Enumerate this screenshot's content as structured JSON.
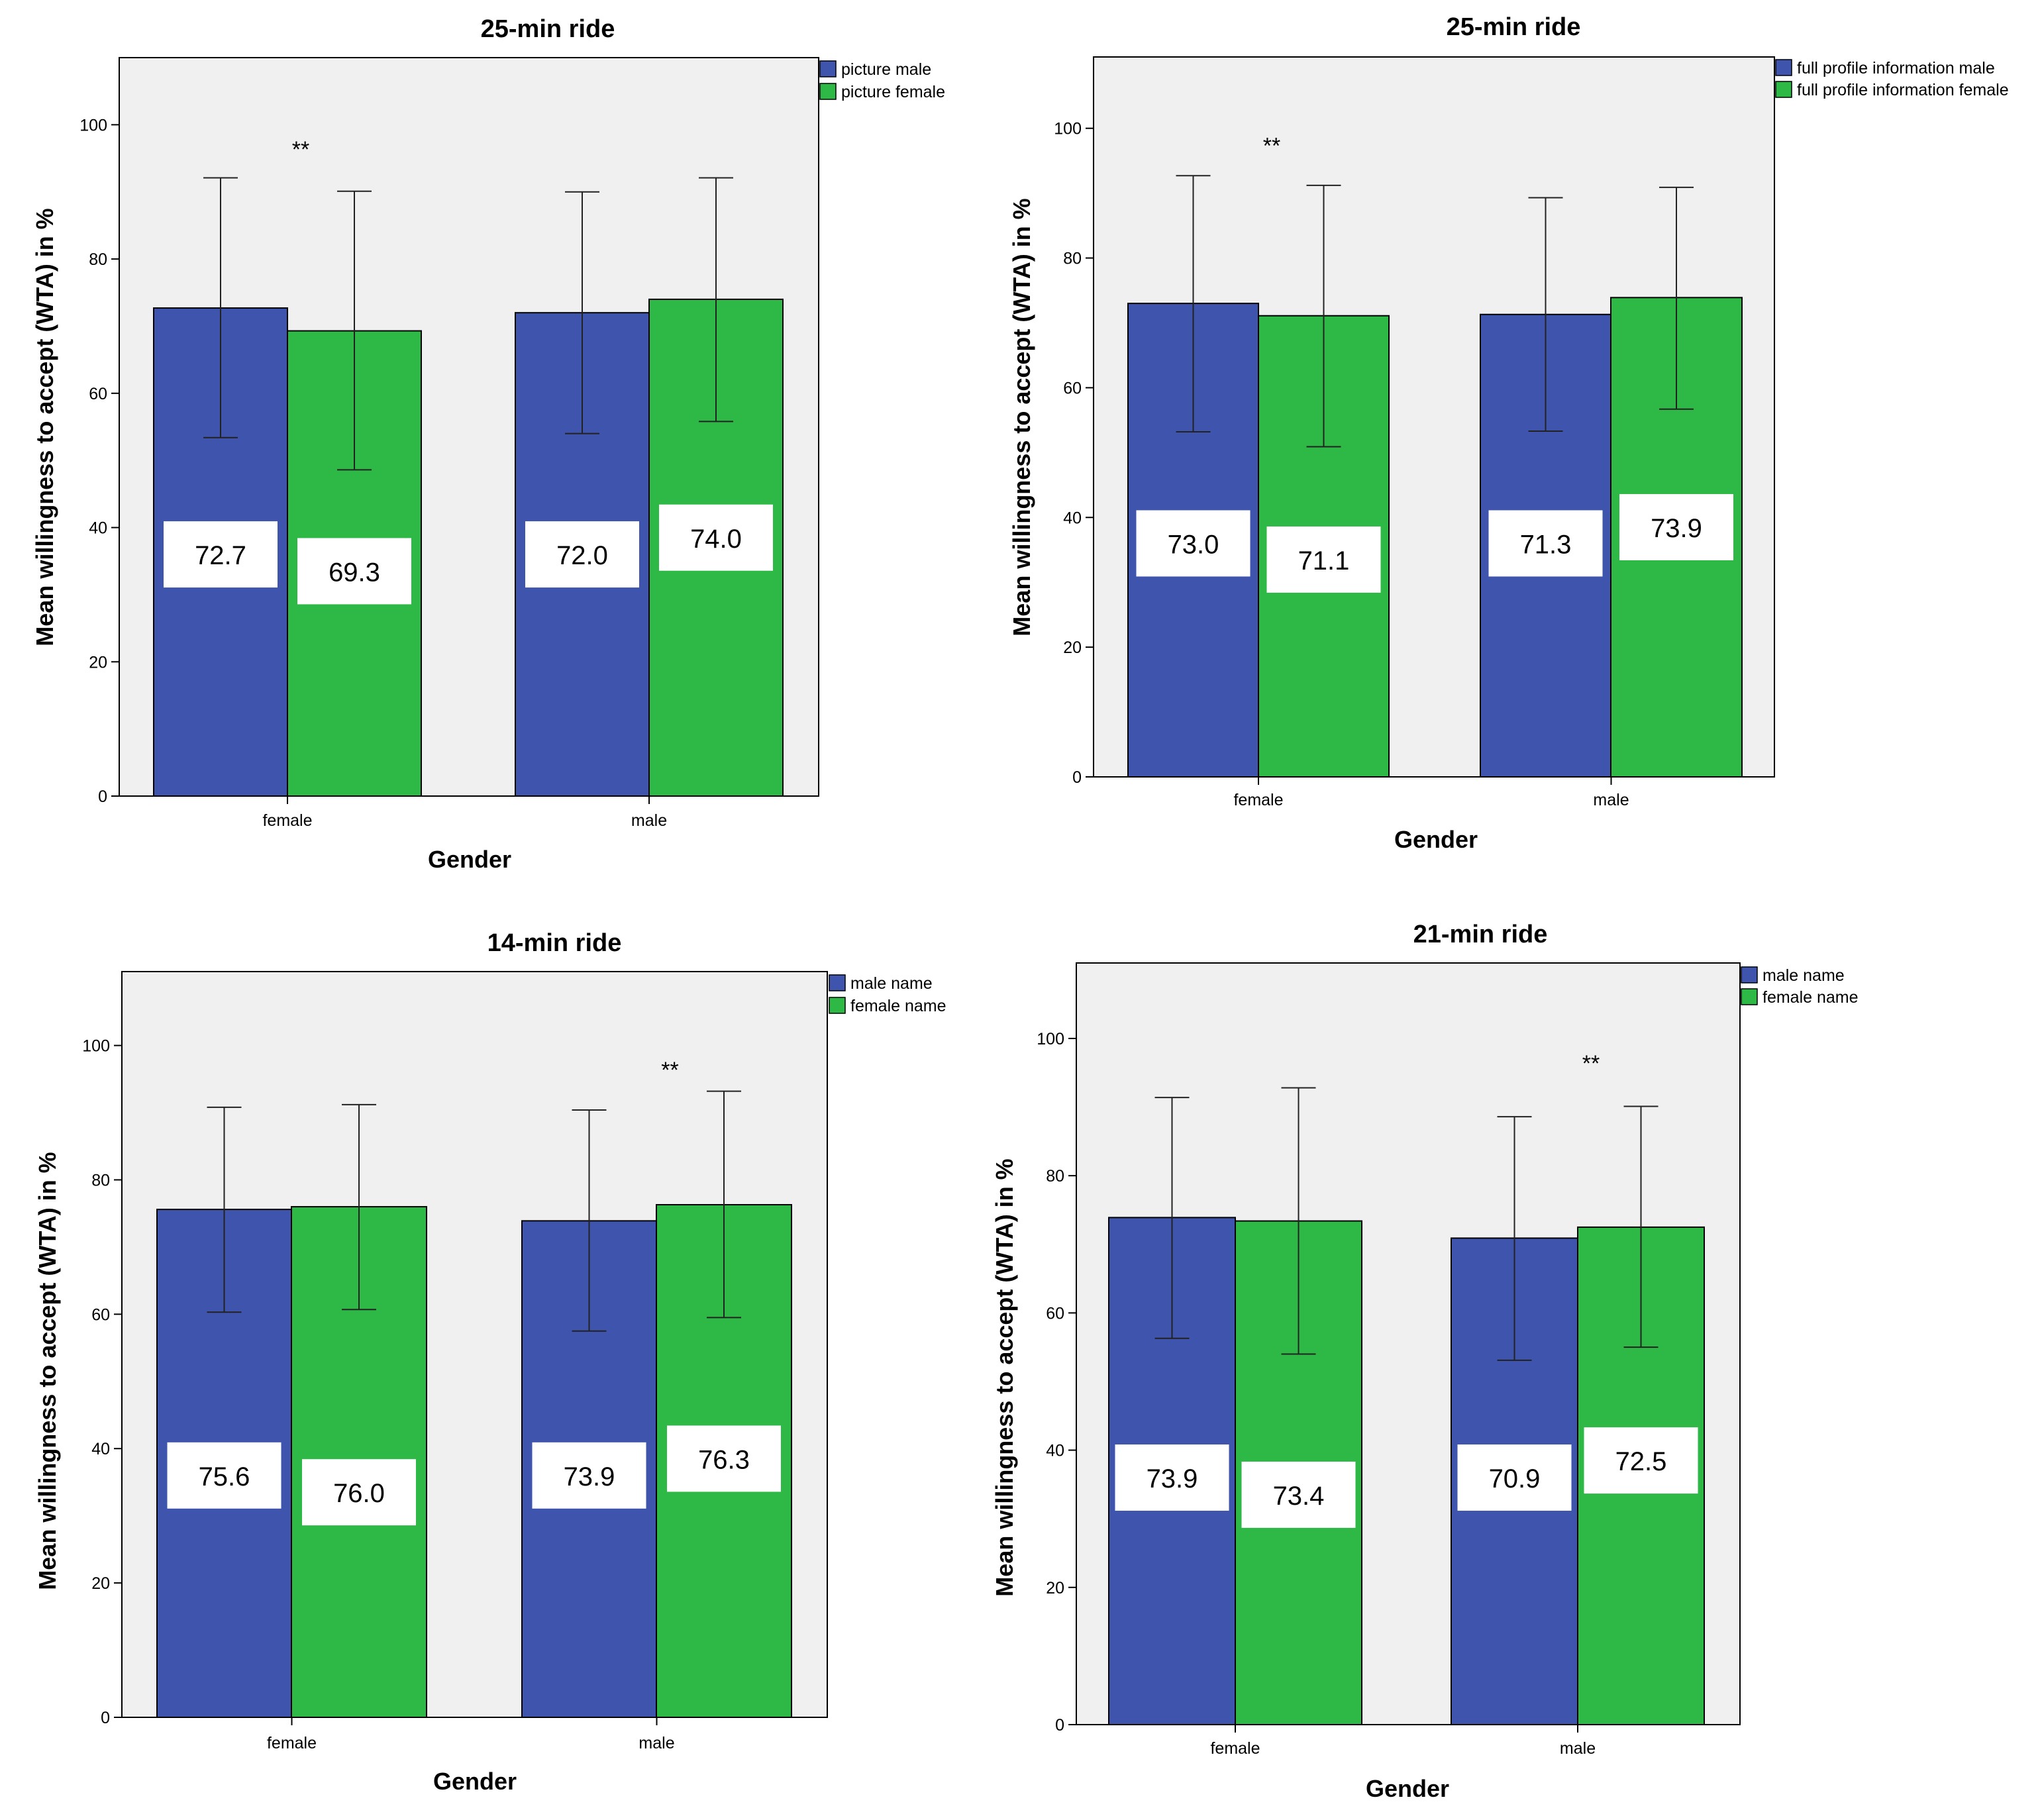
{
  "chart_data": [
    {
      "type": "bar",
      "title": "25-min ride",
      "xlabel": "Gender",
      "ylabel": "Mean willingness to accept (WTA) in %",
      "categories": [
        "female",
        "male"
      ],
      "ylim": [
        0,
        110
      ],
      "yticks": [
        0,
        20,
        40,
        60,
        80,
        100
      ],
      "grid": false,
      "legend_position": "top-right",
      "series": [
        {
          "name": "picture male",
          "color": "#3f55ad",
          "values": [
            72.7,
            72.0
          ],
          "err_low": [
            53.4,
            54.0
          ],
          "err_high": [
            92.1,
            90.0
          ],
          "value_labels": [
            "72.7",
            "72.0"
          ]
        },
        {
          "name": "picture female",
          "color": "#2eb846",
          "values": [
            69.3,
            74.0
          ],
          "err_low": [
            48.6,
            55.8
          ],
          "err_high": [
            90.1,
            92.1
          ],
          "value_labels": [
            "69.3",
            "74.0"
          ]
        }
      ],
      "annotations": [
        {
          "text": "**",
          "category": "female",
          "y": 97
        }
      ]
    },
    {
      "type": "bar",
      "title": "25-min ride",
      "xlabel": "Gender",
      "ylabel": "Mean willingness to accept (WTA) in %",
      "categories": [
        "female",
        "male"
      ],
      "ylim": [
        0,
        111
      ],
      "yticks": [
        0,
        20,
        40,
        60,
        80,
        100
      ],
      "grid": false,
      "legend_position": "top-right",
      "series": [
        {
          "name": "full profile information male",
          "color": "#3f55ad",
          "values": [
            73.0,
            71.3
          ],
          "err_low": [
            53.2,
            53.3
          ],
          "err_high": [
            92.7,
            89.3
          ],
          "value_labels": [
            "73.0",
            "71.3"
          ]
        },
        {
          "name": "full profile information female",
          "color": "#2eb846",
          "values": [
            71.1,
            73.9
          ],
          "err_low": [
            50.9,
            56.7
          ],
          "err_high": [
            91.2,
            90.9
          ],
          "value_labels": [
            "71.1",
            "73.9"
          ]
        }
      ],
      "annotations": [
        {
          "text": "**",
          "category": "female",
          "y": 98
        }
      ]
    },
    {
      "type": "bar",
      "title": "14-min ride",
      "xlabel": "Gender",
      "ylabel": "Mean willingness to accept (WTA) in %",
      "categories": [
        "female",
        "male"
      ],
      "ylim": [
        0,
        111
      ],
      "yticks": [
        0,
        20,
        40,
        60,
        80,
        100
      ],
      "grid": false,
      "legend_position": "top-right",
      "series": [
        {
          "name": "male name",
          "color": "#3f55ad",
          "values": [
            75.6,
            73.9
          ],
          "err_low": [
            60.3,
            57.5
          ],
          "err_high": [
            90.8,
            90.4
          ],
          "value_labels": [
            "75.6",
            "73.9"
          ]
        },
        {
          "name": "female name",
          "color": "#2eb846",
          "values": [
            76.0,
            76.3
          ],
          "err_low": [
            60.7,
            59.5
          ],
          "err_high": [
            91.2,
            93.2
          ],
          "value_labels": [
            "76.0",
            "76.3"
          ]
        }
      ],
      "annotations": [
        {
          "text": "**",
          "category": "male",
          "y": 97
        }
      ]
    },
    {
      "type": "bar",
      "title": "21-min ride",
      "xlabel": "Gender",
      "ylabel": "Mean willingness to accept (WTA) in %",
      "categories": [
        "female",
        "male"
      ],
      "ylim": [
        0,
        111
      ],
      "yticks": [
        0,
        20,
        40,
        60,
        80,
        100
      ],
      "grid": false,
      "legend_position": "top-right",
      "series": [
        {
          "name": "male name",
          "color": "#3f55ad",
          "values": [
            73.9,
            70.9
          ],
          "err_low": [
            56.3,
            53.1
          ],
          "err_high": [
            91.4,
            88.6
          ],
          "value_labels": [
            "73.9",
            "70.9"
          ]
        },
        {
          "name": "female name",
          "color": "#2eb846",
          "values": [
            73.4,
            72.5
          ],
          "err_low": [
            54.0,
            55.0
          ],
          "err_high": [
            92.8,
            90.1
          ],
          "value_labels": [
            "73.4",
            "72.5"
          ]
        }
      ],
      "annotations": [
        {
          "text": "**",
          "category": "male",
          "y": 97
        }
      ]
    }
  ]
}
